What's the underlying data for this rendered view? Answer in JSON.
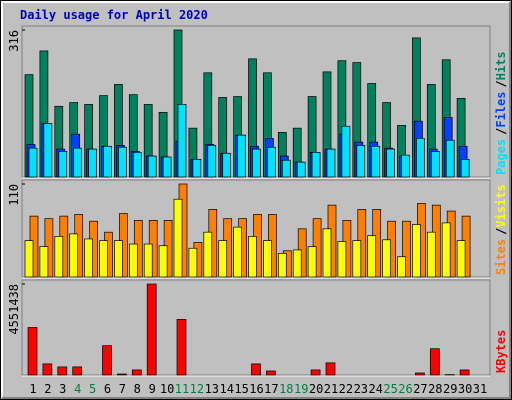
{
  "chart_data": [
    {
      "type": "bar",
      "title": "Daily usage for April 2020",
      "title_color": "#0000c0",
      "ylim": [
        0,
        316
      ],
      "yticks": [
        316
      ],
      "legend_separator": "/",
      "series": [
        {
          "name": "Pages",
          "color": "#00e0ff",
          "values": [
            62,
            115,
            55,
            62,
            60,
            66,
            64,
            53,
            45,
            43,
            156,
            38,
            68,
            51,
            90,
            60,
            64,
            36,
            32,
            53,
            60,
            109,
            68,
            66,
            60,
            47,
            83,
            55,
            79,
            38,
            null
          ]
        },
        {
          "name": "Files",
          "color": "#0040ff",
          "values": [
            70,
            115,
            60,
            92,
            60,
            66,
            68,
            55,
            45,
            43,
            77,
            38,
            70,
            51,
            90,
            66,
            83,
            45,
            32,
            53,
            60,
            92,
            75,
            75,
            62,
            45,
            120,
            60,
            128,
            66,
            null
          ]
        },
        {
          "name": "Hits",
          "color": "#00805c",
          "values": [
            220,
            271,
            152,
            160,
            156,
            175,
            199,
            177,
            156,
            139,
            316,
            105,
            224,
            171,
            173,
            254,
            224,
            96,
            105,
            173,
            226,
            250,
            246,
            201,
            160,
            111,
            299,
            199,
            252,
            169,
            null
          ]
        }
      ]
    },
    {
      "type": "bar",
      "ylim": [
        0,
        110
      ],
      "yticks": [
        110
      ],
      "legend_separator": "/",
      "series": [
        {
          "name": "Sites",
          "color": "#ff8000",
          "values": [
            72,
            69,
            72,
            74,
            66,
            53,
            75,
            67,
            67,
            67,
            110,
            41,
            80,
            69,
            69,
            74,
            74,
            31,
            57,
            69,
            85,
            67,
            80,
            80,
            66,
            66,
            87,
            85,
            78,
            72,
            null
          ]
        },
        {
          "name": "Visits",
          "color": "#ffff00",
          "values": [
            43,
            36,
            48,
            51,
            45,
            43,
            43,
            39,
            39,
            37,
            92,
            34,
            53,
            43,
            59,
            48,
            43,
            28,
            32,
            36,
            57,
            42,
            43,
            49,
            44,
            24,
            62,
            53,
            64,
            43,
            null
          ]
        }
      ]
    },
    {
      "type": "bar",
      "ylim": [
        0,
        4551438
      ],
      "yticks": [
        4551438
      ],
      "categories": [
        "1",
        "2",
        "3",
        "4",
        "5",
        "6",
        "7",
        "8",
        "9",
        "10",
        "11",
        "12",
        "13",
        "14",
        "15",
        "16",
        "17",
        "18",
        "19",
        "20",
        "21",
        "22",
        "23",
        "24",
        "25",
        "26",
        "27",
        "28",
        "29",
        "30",
        "31"
      ],
      "category_colors": [
        "#000000",
        "#000000",
        "#000000",
        "#008040",
        "#008040",
        "#000000",
        "#000000",
        "#000000",
        "#000000",
        "#000000",
        "#008040",
        "#008040",
        "#000000",
        "#000000",
        "#000000",
        "#000000",
        "#000000",
        "#008040",
        "#008040",
        "#000000",
        "#000000",
        "#000000",
        "#000000",
        "#000000",
        "#008040",
        "#008040",
        "#000000",
        "#000000",
        "#000000",
        "#000000",
        "#000000"
      ],
      "series": [
        {
          "name": "KBytes",
          "color": "#ff0000",
          "values": [
            2376000,
            556000,
            405000,
            405000,
            0,
            1466000,
            50000,
            253000,
            4551438,
            0,
            2781000,
            0,
            0,
            0,
            0,
            556000,
            202000,
            0,
            0,
            253000,
            607000,
            0,
            0,
            0,
            0,
            0,
            101000,
            1315000,
            20000,
            253000,
            null
          ]
        }
      ]
    }
  ]
}
